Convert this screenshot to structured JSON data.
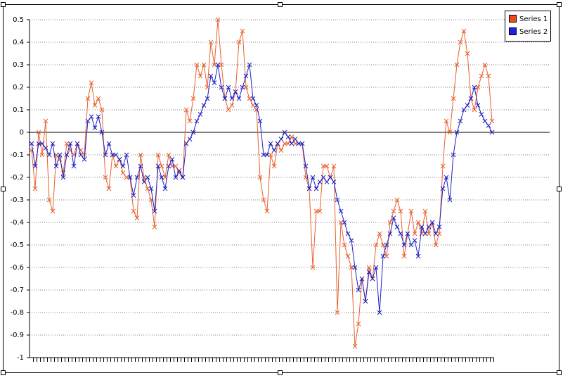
{
  "chart_data": {
    "type": "line",
    "categories": [
      null,
      null,
      null,
      null,
      null,
      null,
      null,
      null,
      null,
      null,
      null,
      null,
      null,
      null,
      null,
      null,
      null,
      null,
      null,
      null,
      null,
      null,
      null,
      null,
      null,
      null,
      null,
      null,
      null,
      null,
      null,
      null,
      null,
      null,
      null,
      null,
      null,
      null,
      null,
      null,
      null,
      null,
      null,
      null,
      null,
      null,
      null,
      null,
      null,
      null,
      null,
      null,
      null,
      null,
      null,
      null,
      null,
      null,
      null,
      null,
      null,
      null,
      null,
      null,
      null,
      null,
      null,
      null,
      null,
      null,
      null,
      null,
      null,
      null,
      null,
      null,
      null,
      null,
      null,
      null,
      null,
      null,
      null,
      null,
      null,
      null,
      null,
      null,
      null,
      null,
      null,
      null,
      null,
      null,
      null,
      null,
      null,
      null,
      null,
      null,
      null,
      null,
      null,
      null,
      null,
      null,
      null,
      null,
      null,
      null,
      null,
      null,
      null,
      null,
      null,
      null,
      null,
      null,
      null,
      null,
      null,
      null,
      null,
      null,
      null,
      null,
      null,
      null,
      null,
      null,
      null,
      null
    ],
    "series": [
      {
        "name": "Series 1",
        "color": "#e8602c",
        "legend_color": "#f04a1c",
        "values": [
          -0.08,
          -0.25,
          0,
          -0.1,
          0.05,
          -0.3,
          -0.35,
          -0.1,
          -0.12,
          -0.18,
          -0.05,
          -0.08,
          -0.1,
          -0.05,
          -0.08,
          -0.1,
          0.15,
          0.22,
          0.12,
          0.15,
          0.1,
          -0.2,
          -0.25,
          -0.1,
          -0.15,
          -0.12,
          -0.18,
          -0.2,
          -0.2,
          -0.35,
          -0.38,
          -0.1,
          -0.2,
          -0.25,
          -0.3,
          -0.42,
          -0.1,
          -0.15,
          -0.2,
          -0.1,
          -0.15,
          -0.15,
          -0.18,
          -0.2,
          0.1,
          0.05,
          0.15,
          0.3,
          0.25,
          0.3,
          0.2,
          0.4,
          0.3,
          0.5,
          0.3,
          0.15,
          0.1,
          0.12,
          0.18,
          0.4,
          0.45,
          0.2,
          0.15,
          0.12,
          0.1,
          -0.2,
          -0.3,
          -0.35,
          -0.1,
          -0.15,
          -0.05,
          -0.08,
          -0.05,
          -0.05,
          -0.02,
          -0.05,
          -0.05,
          -0.05,
          -0.2,
          -0.25,
          -0.6,
          -0.35,
          -0.35,
          -0.15,
          -0.15,
          -0.2,
          -0.15,
          -0.8,
          -0.4,
          -0.5,
          -0.55,
          -0.6,
          -0.95,
          -0.85,
          -0.65,
          -0.75,
          -0.6,
          -0.65,
          -0.5,
          -0.45,
          -0.5,
          -0.55,
          -0.4,
          -0.35,
          -0.3,
          -0.35,
          -0.55,
          -0.45,
          -0.35,
          -0.45,
          -0.4,
          -0.45,
          -0.35,
          -0.45,
          -0.4,
          -0.5,
          -0.45,
          -0.15,
          0.05,
          0,
          0.15,
          0.3,
          0.4,
          0.45,
          0.35,
          0.15,
          0.1,
          0.2,
          0.25,
          0.3,
          0.25,
          0.05
        ]
      },
      {
        "name": "Series 2",
        "color": "#2020c0",
        "legend_color": "#2020e0",
        "values": [
          -0.05,
          -0.15,
          -0.05,
          -0.05,
          -0.07,
          -0.1,
          -0.05,
          -0.15,
          -0.1,
          -0.2,
          -0.1,
          -0.05,
          -0.15,
          -0.05,
          -0.1,
          -0.12,
          0.05,
          0.07,
          0.02,
          0.07,
          0,
          -0.1,
          -0.05,
          -0.1,
          -0.1,
          -0.12,
          -0.15,
          -0.1,
          -0.2,
          -0.28,
          -0.2,
          -0.15,
          -0.22,
          -0.2,
          -0.25,
          -0.35,
          -0.15,
          -0.2,
          -0.25,
          -0.15,
          -0.12,
          -0.2,
          -0.17,
          -0.2,
          -0.05,
          -0.03,
          0,
          0.05,
          0.08,
          0.12,
          0.15,
          0.25,
          0.22,
          0.3,
          0.2,
          0.15,
          0.2,
          0.15,
          0.18,
          0.15,
          0.2,
          0.25,
          0.3,
          0.15,
          0.12,
          0.05,
          -0.1,
          -0.1,
          -0.05,
          -0.08,
          -0.05,
          -0.03,
          0,
          -0.02,
          -0.05,
          -0.03,
          -0.05,
          -0.05,
          -0.15,
          -0.25,
          -0.2,
          -0.25,
          -0.22,
          -0.2,
          -0.22,
          -0.2,
          -0.22,
          -0.3,
          -0.35,
          -0.4,
          -0.45,
          -0.48,
          -0.6,
          -0.7,
          -0.65,
          -0.75,
          -0.62,
          -0.65,
          -0.6,
          -0.8,
          -0.55,
          -0.5,
          -0.45,
          -0.38,
          -0.42,
          -0.45,
          -0.5,
          -0.45,
          -0.5,
          -0.48,
          -0.55,
          -0.42,
          -0.45,
          -0.42,
          -0.4,
          -0.45,
          -0.42,
          -0.25,
          -0.2,
          -0.3,
          -0.1,
          0,
          0.05,
          0.1,
          0.12,
          0.15,
          0.2,
          0.12,
          0.08,
          0.05,
          0.03,
          0
        ]
      }
    ],
    "ylim": [
      -1,
      0.5
    ],
    "yticks": [
      -1,
      -0.9,
      -0.8,
      -0.7,
      -0.6,
      -0.5,
      -0.4,
      -0.3,
      -0.2,
      -0.1,
      0,
      0.1,
      0.2,
      0.3,
      0.4,
      0.5
    ],
    "grid": true,
    "marker": "x",
    "legend": "top-right"
  }
}
